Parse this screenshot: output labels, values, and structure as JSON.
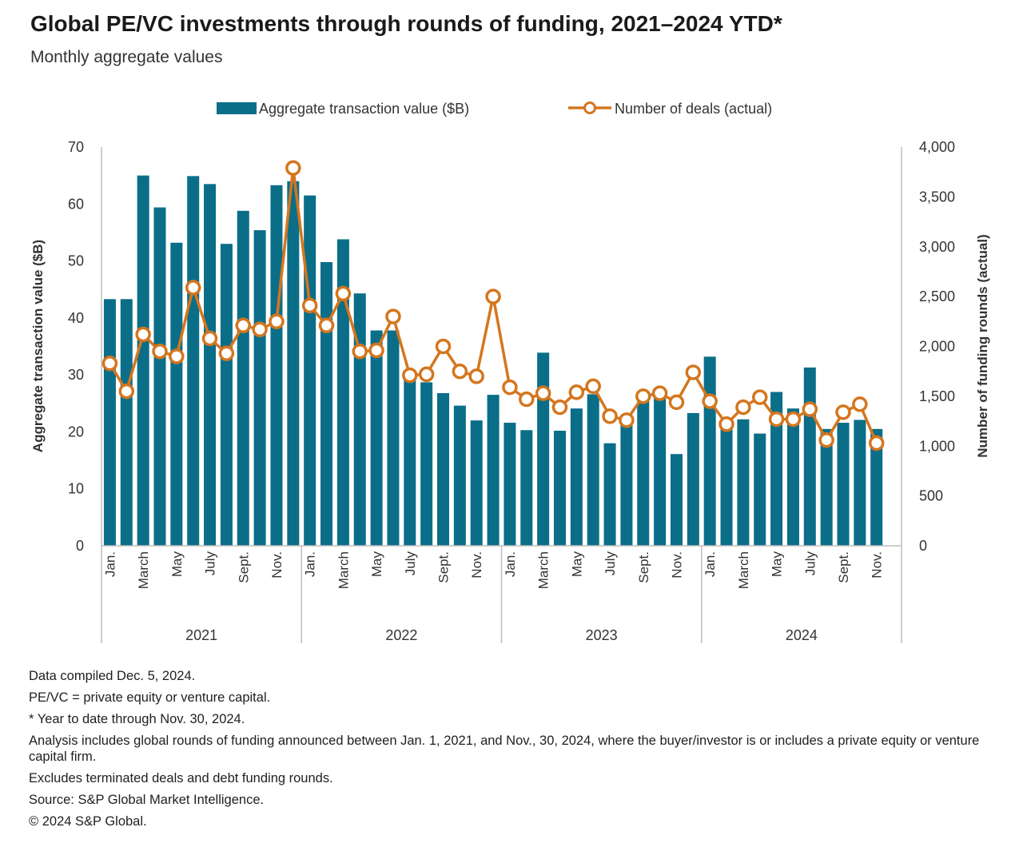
{
  "title": "Global PE/VC investments through rounds of funding, 2021–2024 YTD*",
  "subtitle": "Monthly aggregate values",
  "colors": {
    "bar": "#0a6e88",
    "line": "#d4761e",
    "axis": "#bdbdbd"
  },
  "notes": [
    "Data compiled Dec. 5, 2024.",
    "PE/VC = private equity or venture capital.",
    "* Year to date through Nov. 30, 2024.",
    "Analysis includes global rounds of funding announced between Jan. 1, 2021, and Nov., 30, 2024, where the buyer/investor is or includes a private equity or venture capital firm.",
    "Excludes terminated deals and debt funding rounds.",
    "Source: S&P Global Market Intelligence.",
    "© 2024 S&P Global."
  ],
  "chart_data": {
    "type": "bar",
    "legend": [
      "Aggregate transaction value ($B)",
      "Number of deals (actual)"
    ],
    "legend_position": "top-center",
    "ylabel": "Aggregate transaction value ($B)",
    "y2label": "Number of funding rounds (actual)",
    "ylim": [
      0,
      70
    ],
    "y2lim": [
      0,
      4000
    ],
    "yticks": [
      "0",
      "10",
      "20",
      "30",
      "40",
      "50",
      "60",
      "70"
    ],
    "y2ticks": [
      "0",
      "500",
      "1,000",
      "1,500",
      "2,000",
      "2,500",
      "3,000",
      "3,500",
      "4,000"
    ],
    "grid": false,
    "month_labels": [
      "Jan.",
      "March",
      "May",
      "July",
      "Sept.",
      "Nov."
    ],
    "years": [
      "2021",
      "2022",
      "2023",
      "2024"
    ],
    "series": [
      {
        "name": "Aggregate transaction value ($B)",
        "type": "bar",
        "values": [
          43.3,
          43.3,
          65.0,
          59.4,
          53.2,
          64.9,
          63.5,
          53.0,
          58.8,
          55.4,
          63.3,
          64.0,
          61.5,
          49.8,
          53.8,
          44.3,
          37.8,
          37.8,
          30.6,
          28.7,
          26.8,
          24.6,
          22.0,
          26.5,
          21.6,
          20.3,
          33.9,
          20.2,
          24.1,
          26.6,
          18.0,
          22.7,
          25.8,
          27.1,
          16.1,
          23.3,
          33.2,
          20.5,
          22.2,
          19.7,
          27.0,
          24.1,
          31.3,
          20.5,
          21.6,
          22.1,
          20.5
        ]
      },
      {
        "name": "Number of deals (actual)",
        "type": "line",
        "values": [
          1830,
          1550,
          2120,
          1950,
          1900,
          2590,
          2080,
          1930,
          2210,
          2170,
          2250,
          3790,
          2410,
          2210,
          2530,
          1950,
          1960,
          2300,
          1710,
          1720,
          2000,
          1750,
          1700,
          2500,
          1590,
          1470,
          1530,
          1390,
          1540,
          1600,
          1300,
          1260,
          1500,
          1530,
          1440,
          1740,
          1450,
          1220,
          1390,
          1490,
          1270,
          1270,
          1370,
          1060,
          1340,
          1420,
          1030
        ]
      }
    ]
  }
}
